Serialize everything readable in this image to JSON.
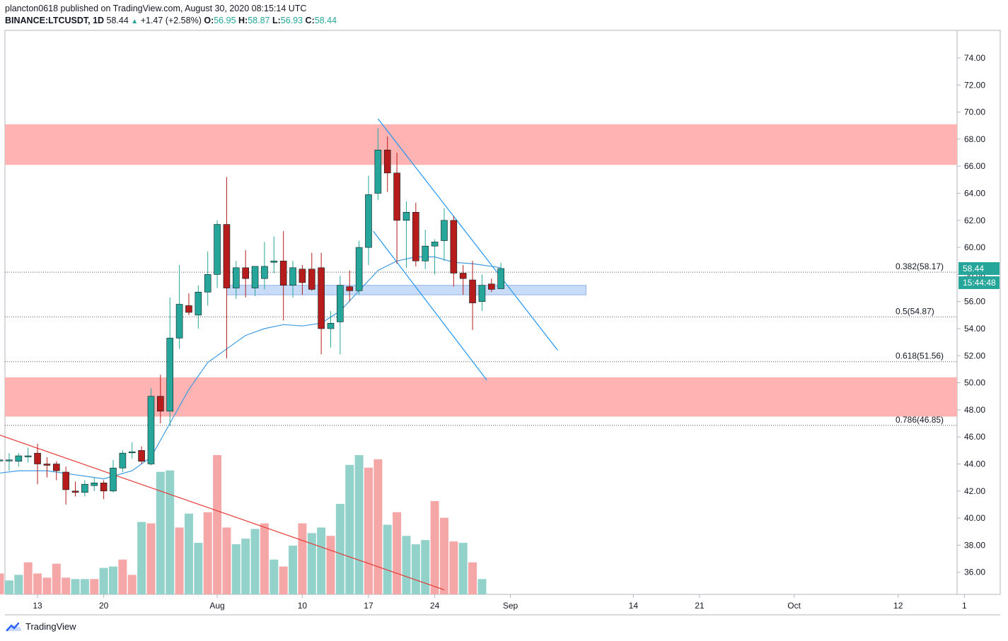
{
  "header": {
    "publisher_line": "plancton0618 published on TradingView.com, August 30, 2020 08:15:14 UTC",
    "symbol": "BINANCE:LTCUSDT, 1D",
    "last": "58.44",
    "change": "+1.47 (+2.58%)",
    "o_label": "O:",
    "o": "56.95",
    "h_label": "H:",
    "h": "58.87",
    "l_label": "L:",
    "l": "56.93",
    "c_label": "C:",
    "c": "58.44"
  },
  "price_label": "58.44",
  "countdown_label": "15:44:48",
  "footer": {
    "brand": "TradingView"
  },
  "colors": {
    "up": "#26a69a",
    "down": "#b71c1c",
    "ma": "#3f9be0",
    "zone": "#ffb3b3",
    "support_zone": "#c8dcf8",
    "trend_red": "#e53935",
    "channel": "#2196f3"
  },
  "chart_data": {
    "type": "candlestick",
    "title": "BINANCE:LTCUSDT, 1D",
    "ylim": [
      34.5,
      76.5
    ],
    "y_ticks": [
      "74.00",
      "72.00",
      "70.00",
      "68.00",
      "66.00",
      "64.00",
      "62.00",
      "60.00",
      "58.00",
      "56.00",
      "54.00",
      "52.00",
      "50.00",
      "48.00",
      "46.00",
      "44.00",
      "42.00",
      "40.00",
      "38.00",
      "36.00"
    ],
    "x_ticks": [
      {
        "label": "13",
        "day": 12
      },
      {
        "label": "20",
        "day": 19
      },
      {
        "label": "Aug",
        "day": 31
      },
      {
        "label": "10",
        "day": 40
      },
      {
        "label": "17",
        "day": 47
      },
      {
        "label": "24",
        "day": 54
      },
      {
        "label": "Sep",
        "day": 62
      },
      {
        "label": "14",
        "day": 75
      },
      {
        "label": "21",
        "day": 82
      },
      {
        "label": "Oct",
        "day": 92
      },
      {
        "label": "12",
        "day": 103
      },
      {
        "label": "1",
        "day": 110
      }
    ],
    "candles": [
      {
        "day": 8,
        "o": 44.3,
        "h": 45.0,
        "l": 43.5,
        "c": 44.3
      },
      {
        "day": 9,
        "o": 44.3,
        "h": 44.8,
        "l": 43.5,
        "c": 44.3
      },
      {
        "day": 10,
        "o": 44.2,
        "h": 44.8,
        "l": 43.8,
        "c": 44.6
      },
      {
        "day": 11,
        "o": 44.6,
        "h": 45.2,
        "l": 44.1,
        "c": 44.6
      },
      {
        "day": 12,
        "o": 44.8,
        "h": 45.5,
        "l": 42.5,
        "c": 44.0
      },
      {
        "day": 13,
        "o": 44.0,
        "h": 44.5,
        "l": 43.0,
        "c": 43.9
      },
      {
        "day": 14,
        "o": 44.0,
        "h": 44.2,
        "l": 42.8,
        "c": 43.5
      },
      {
        "day": 15,
        "o": 43.4,
        "h": 43.8,
        "l": 41.0,
        "c": 42.1
      },
      {
        "day": 16,
        "o": 42.0,
        "h": 42.7,
        "l": 41.6,
        "c": 41.9
      },
      {
        "day": 17,
        "o": 41.9,
        "h": 42.8,
        "l": 41.6,
        "c": 42.5
      },
      {
        "day": 18,
        "o": 42.4,
        "h": 43.0,
        "l": 42.0,
        "c": 42.6
      },
      {
        "day": 19,
        "o": 42.6,
        "h": 42.8,
        "l": 41.4,
        "c": 42.0
      },
      {
        "day": 20,
        "o": 42.0,
        "h": 44.3,
        "l": 41.9,
        "c": 43.7
      },
      {
        "day": 21,
        "o": 43.7,
        "h": 45.0,
        "l": 43.4,
        "c": 44.8
      },
      {
        "day": 22,
        "o": 44.9,
        "h": 45.6,
        "l": 44.4,
        "c": 44.9
      },
      {
        "day": 23,
        "o": 45.0,
        "h": 45.3,
        "l": 44.0,
        "c": 44.2
      },
      {
        "day": 24,
        "o": 44.0,
        "h": 49.6,
        "l": 43.9,
        "c": 49.0
      },
      {
        "day": 25,
        "o": 49.0,
        "h": 50.6,
        "l": 47.0,
        "c": 47.9
      },
      {
        "day": 26,
        "o": 47.9,
        "h": 56.3,
        "l": 46.8,
        "c": 53.3
      },
      {
        "day": 27,
        "o": 53.3,
        "h": 58.7,
        "l": 52.5,
        "c": 55.8
      },
      {
        "day": 28,
        "o": 55.7,
        "h": 56.6,
        "l": 55.0,
        "c": 55.2
      },
      {
        "day": 29,
        "o": 55.0,
        "h": 57.2,
        "l": 54.0,
        "c": 56.7
      },
      {
        "day": 30,
        "o": 56.7,
        "h": 59.7,
        "l": 55.7,
        "c": 58.0
      },
      {
        "day": 31,
        "o": 58.0,
        "h": 62.0,
        "l": 57.0,
        "c": 61.7
      },
      {
        "day": 32,
        "o": 61.7,
        "h": 65.2,
        "l": 51.8,
        "c": 57.0
      },
      {
        "day": 33,
        "o": 57.0,
        "h": 59.0,
        "l": 56.2,
        "c": 58.5
      },
      {
        "day": 34,
        "o": 58.5,
        "h": 59.8,
        "l": 56.3,
        "c": 57.7
      },
      {
        "day": 35,
        "o": 57.0,
        "h": 58.6,
        "l": 56.4,
        "c": 58.6
      },
      {
        "day": 36,
        "o": 57.7,
        "h": 60.4,
        "l": 56.9,
        "c": 58.6
      },
      {
        "day": 37,
        "o": 58.9,
        "h": 60.8,
        "l": 58.1,
        "c": 59.0
      },
      {
        "day": 38,
        "o": 59.0,
        "h": 61.2,
        "l": 54.6,
        "c": 57.2
      },
      {
        "day": 39,
        "o": 57.2,
        "h": 59.0,
        "l": 56.3,
        "c": 58.5
      },
      {
        "day": 40,
        "o": 58.4,
        "h": 58.7,
        "l": 56.5,
        "c": 57.4
      },
      {
        "day": 41,
        "o": 58.4,
        "h": 59.6,
        "l": 56.8,
        "c": 56.9
      },
      {
        "day": 42,
        "o": 58.5,
        "h": 59.6,
        "l": 52.1,
        "c": 54.0
      },
      {
        "day": 43,
        "o": 54.0,
        "h": 55.3,
        "l": 52.6,
        "c": 54.4
      },
      {
        "day": 44,
        "o": 54.5,
        "h": 57.9,
        "l": 52.1,
        "c": 57.2
      },
      {
        "day": 45,
        "o": 57.1,
        "h": 58.3,
        "l": 56.0,
        "c": 56.8
      },
      {
        "day": 46,
        "o": 56.8,
        "h": 60.5,
        "l": 56.5,
        "c": 60.0
      },
      {
        "day": 47,
        "o": 60.0,
        "h": 65.3,
        "l": 58.7,
        "c": 63.9
      },
      {
        "day": 48,
        "o": 64.0,
        "h": 68.8,
        "l": 63.5,
        "c": 67.2
      },
      {
        "day": 49,
        "o": 67.2,
        "h": 68.2,
        "l": 64.1,
        "c": 65.5
      },
      {
        "day": 50,
        "o": 65.5,
        "h": 67.0,
        "l": 58.8,
        "c": 62.0
      },
      {
        "day": 51,
        "o": 62.0,
        "h": 63.4,
        "l": 58.5,
        "c": 62.6
      },
      {
        "day": 52,
        "o": 62.6,
        "h": 63.3,
        "l": 58.6,
        "c": 59.0
      },
      {
        "day": 53,
        "o": 59.0,
        "h": 61.3,
        "l": 58.4,
        "c": 60.1
      },
      {
        "day": 54,
        "o": 60.1,
        "h": 60.6,
        "l": 58.0,
        "c": 60.4
      },
      {
        "day": 55,
        "o": 60.5,
        "h": 62.9,
        "l": 59.0,
        "c": 62.0
      },
      {
        "day": 56,
        "o": 62.0,
        "h": 62.3,
        "l": 57.1,
        "c": 58.1
      },
      {
        "day": 57,
        "o": 58.1,
        "h": 58.7,
        "l": 56.5,
        "c": 57.7
      },
      {
        "day": 58,
        "o": 57.6,
        "h": 59.0,
        "l": 53.9,
        "c": 55.9
      },
      {
        "day": 59,
        "o": 56.0,
        "h": 58.0,
        "l": 55.3,
        "c": 57.2
      },
      {
        "day": 60,
        "o": 57.3,
        "h": 57.7,
        "l": 56.7,
        "c": 56.9
      },
      {
        "day": 61,
        "o": 56.95,
        "h": 58.87,
        "l": 56.93,
        "c": 58.44
      }
    ],
    "volume": [
      {
        "day": 7,
        "v": 2.4,
        "up": false
      },
      {
        "day": 8,
        "v": 1.5,
        "up": false
      },
      {
        "day": 9,
        "v": 1.0,
        "up": true
      },
      {
        "day": 10,
        "v": 1.4,
        "up": true
      },
      {
        "day": 11,
        "v": 2.3,
        "up": false
      },
      {
        "day": 12,
        "v": 1.5,
        "up": false
      },
      {
        "day": 13,
        "v": 1.2,
        "up": false
      },
      {
        "day": 14,
        "v": 2.2,
        "up": false
      },
      {
        "day": 15,
        "v": 1.2,
        "up": false
      },
      {
        "day": 16,
        "v": 1.1,
        "up": true
      },
      {
        "day": 17,
        "v": 1.1,
        "up": true
      },
      {
        "day": 18,
        "v": 1.1,
        "up": false
      },
      {
        "day": 19,
        "v": 1.9,
        "up": true
      },
      {
        "day": 20,
        "v": 2.0,
        "up": true
      },
      {
        "day": 21,
        "v": 2.5,
        "up": false
      },
      {
        "day": 22,
        "v": 1.4,
        "up": false
      },
      {
        "day": 23,
        "v": 5.2,
        "up": true
      },
      {
        "day": 24,
        "v": 5.1,
        "up": false
      },
      {
        "day": 25,
        "v": 8.8,
        "up": true
      },
      {
        "day": 26,
        "v": 8.9,
        "up": true
      },
      {
        "day": 27,
        "v": 4.8,
        "up": false
      },
      {
        "day": 28,
        "v": 5.8,
        "up": true
      },
      {
        "day": 29,
        "v": 3.7,
        "up": true
      },
      {
        "day": 30,
        "v": 5.9,
        "up": false
      },
      {
        "day": 31,
        "v": 10.0,
        "up": false
      },
      {
        "day": 32,
        "v": 4.8,
        "up": false
      },
      {
        "day": 33,
        "v": 3.6,
        "up": true
      },
      {
        "day": 34,
        "v": 4.0,
        "up": true
      },
      {
        "day": 35,
        "v": 4.7,
        "up": true
      },
      {
        "day": 36,
        "v": 5.1,
        "up": false
      },
      {
        "day": 37,
        "v": 2.5,
        "up": true
      },
      {
        "day": 38,
        "v": 2.0,
        "up": false
      },
      {
        "day": 39,
        "v": 3.5,
        "up": true
      },
      {
        "day": 40,
        "v": 5.1,
        "up": false
      },
      {
        "day": 41,
        "v": 4.4,
        "up": true
      },
      {
        "day": 42,
        "v": 4.8,
        "up": true
      },
      {
        "day": 43,
        "v": 4.2,
        "up": false
      },
      {
        "day": 44,
        "v": 6.5,
        "up": true
      },
      {
        "day": 45,
        "v": 9.3,
        "up": true
      },
      {
        "day": 46,
        "v": 10.0,
        "up": true
      },
      {
        "day": 47,
        "v": 9.1,
        "up": false
      },
      {
        "day": 48,
        "v": 9.7,
        "up": false
      },
      {
        "day": 49,
        "v": 5.0,
        "up": true
      },
      {
        "day": 50,
        "v": 5.9,
        "up": false
      },
      {
        "day": 51,
        "v": 4.2,
        "up": true
      },
      {
        "day": 52,
        "v": 3.6,
        "up": true
      },
      {
        "day": 53,
        "v": 3.9,
        "up": true
      },
      {
        "day": 54,
        "v": 6.7,
        "up": false
      },
      {
        "day": 55,
        "v": 5.5,
        "up": false
      },
      {
        "day": 56,
        "v": 3.8,
        "up": false
      },
      {
        "day": 57,
        "v": 3.7,
        "up": true
      },
      {
        "day": 58,
        "v": 2.3,
        "up": false
      },
      {
        "day": 59,
        "v": 1.1,
        "up": true
      }
    ],
    "ma": [
      {
        "day": 6.5,
        "v": 43.2
      },
      {
        "day": 10,
        "v": 43.5
      },
      {
        "day": 13,
        "v": 43.5
      },
      {
        "day": 16,
        "v": 43.2
      },
      {
        "day": 19,
        "v": 42.9
      },
      {
        "day": 22,
        "v": 43.5
      },
      {
        "day": 24,
        "v": 44.5
      },
      {
        "day": 26,
        "v": 47.0
      },
      {
        "day": 28,
        "v": 49.5
      },
      {
        "day": 30,
        "v": 51.5
      },
      {
        "day": 32,
        "v": 52.5
      },
      {
        "day": 34,
        "v": 53.5
      },
      {
        "day": 36,
        "v": 54.0
      },
      {
        "day": 38,
        "v": 54.3
      },
      {
        "day": 40,
        "v": 54.2
      },
      {
        "day": 42,
        "v": 54.4
      },
      {
        "day": 44,
        "v": 55.3
      },
      {
        "day": 46,
        "v": 56.8
      },
      {
        "day": 48,
        "v": 58.3
      },
      {
        "day": 50,
        "v": 59.0
      },
      {
        "day": 52,
        "v": 59.3
      },
      {
        "day": 54,
        "v": 59.3
      },
      {
        "day": 56,
        "v": 58.9
      },
      {
        "day": 58,
        "v": 58.8
      },
      {
        "day": 61,
        "v": 58.5
      }
    ],
    "resistance_zone": {
      "y1": 66.1,
      "y2": 69.1
    },
    "support_zone": {
      "y1": 47.5,
      "y2": 50.4
    },
    "blue_zone": {
      "day1": 32,
      "day2": 70,
      "y1": 56.5,
      "y2": 57.2
    },
    "fib_levels": [
      {
        "label": "0.382(58.17)",
        "v": 58.17
      },
      {
        "label": "0.5(54.87)",
        "v": 54.87
      },
      {
        "label": "0.618(51.56)",
        "v": 51.56
      },
      {
        "label": "0.786(46.85)",
        "v": 46.85
      }
    ],
    "trendlines": [
      {
        "name": "descending-red",
        "color": "#e53935",
        "p1": {
          "day": 6.5,
          "v": 46.5
        },
        "p2": {
          "day": 55,
          "v": 34.7
        }
      },
      {
        "name": "channel-upper",
        "color": "#2196f3",
        "p1": {
          "day": 48,
          "v": 69.5
        },
        "p2": {
          "day": 67,
          "v": 52.4
        }
      },
      {
        "name": "channel-lower",
        "color": "#2196f3",
        "p1": {
          "day": 47.5,
          "v": 61.2
        },
        "p2": {
          "day": 59.5,
          "v": 50.2
        }
      }
    ]
  }
}
